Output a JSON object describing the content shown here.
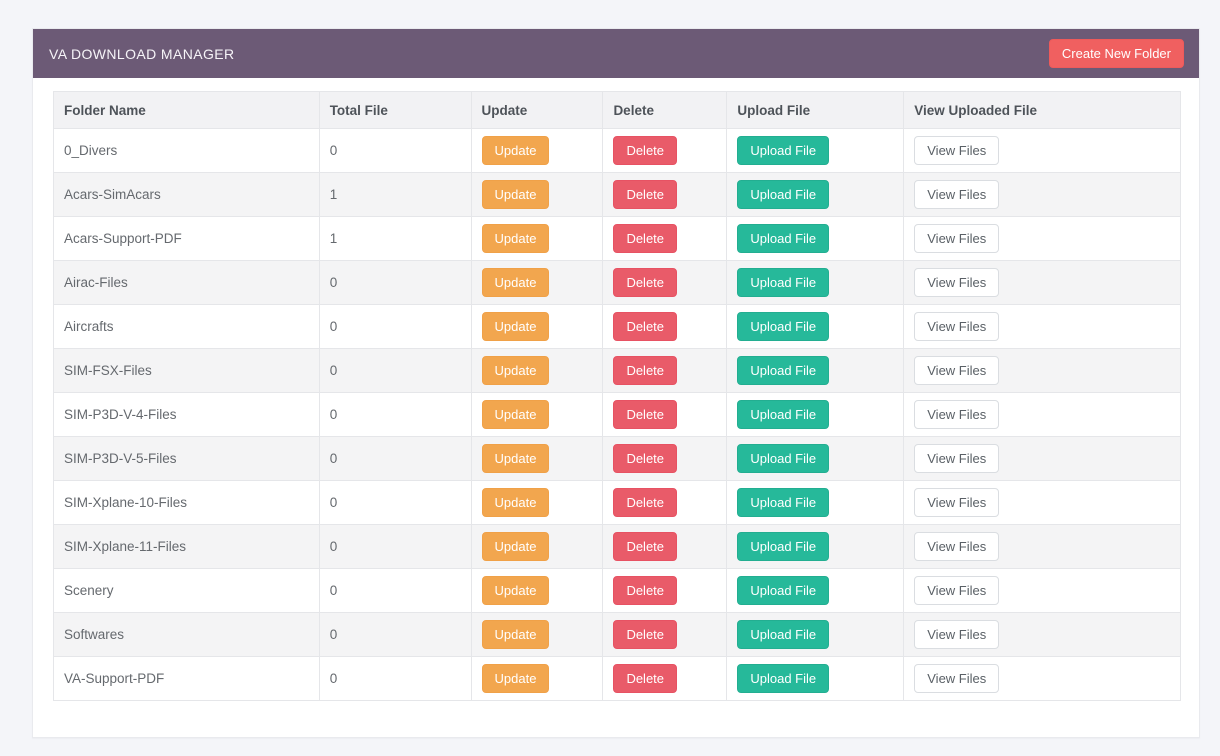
{
  "header": {
    "title": "VA DOWNLOAD MANAGER",
    "create_button_label": "Create New Folder"
  },
  "table": {
    "columns": {
      "folder_name": "Folder Name",
      "total_file": "Total File",
      "update": "Update",
      "delete": "Delete",
      "upload_file": "Upload File",
      "view_uploaded_file": "View Uploaded File"
    },
    "action_labels": {
      "update": "Update",
      "delete": "Delete",
      "upload": "Upload File",
      "view": "View Files"
    },
    "rows": [
      {
        "folder": "0_Divers",
        "total": "0"
      },
      {
        "folder": "Acars-SimAcars",
        "total": "1"
      },
      {
        "folder": "Acars-Support-PDF",
        "total": "1"
      },
      {
        "folder": "Airac-Files",
        "total": "0"
      },
      {
        "folder": "Aircrafts",
        "total": "0"
      },
      {
        "folder": "SIM-FSX-Files",
        "total": "0"
      },
      {
        "folder": "SIM-P3D-V-4-Files",
        "total": "0"
      },
      {
        "folder": "SIM-P3D-V-5-Files",
        "total": "0"
      },
      {
        "folder": "SIM-Xplane-10-Files",
        "total": "0"
      },
      {
        "folder": "SIM-Xplane-11-Files",
        "total": "0"
      },
      {
        "folder": "Scenery",
        "total": "0"
      },
      {
        "folder": "Softwares",
        "total": "0"
      },
      {
        "folder": "VA-Support-PDF",
        "total": "0"
      }
    ]
  },
  "colors": {
    "page_background": "#f4f5f9",
    "panel_heading_purple": "#6c5a76",
    "create_button_red": "#f06060",
    "update_button_orange": "#f2a64e",
    "delete_button_red": "#e95b69",
    "upload_button_green": "#26b99a",
    "view_button_border": "#dadde1",
    "striped_row_gray": "#f4f4f5"
  }
}
